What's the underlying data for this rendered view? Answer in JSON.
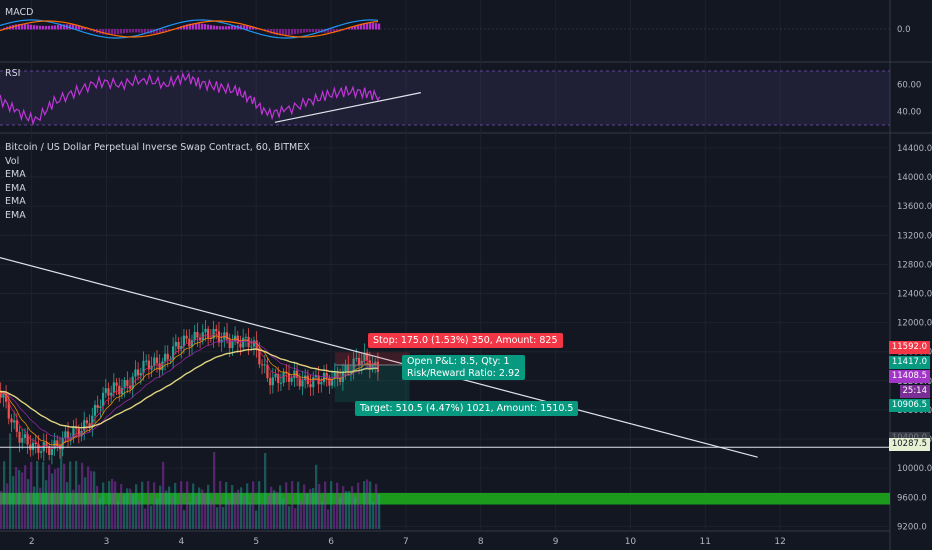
{
  "macd": {
    "label": "MACD",
    "zero_label": "0.0"
  },
  "rsi": {
    "label": "RSI",
    "ticks": [
      "60.00",
      "40.00"
    ]
  },
  "main": {
    "title": "Bitcoin / US Dollar Perpetual Inverse Swap Contract, 60, BITMEX",
    "legend": [
      "Vol",
      "EMA",
      "EMA",
      "EMA",
      "EMA"
    ]
  },
  "position": {
    "stop_label": "Stop: 175.0 (1.53%) 350, Amount: 825",
    "target_label": "Target: 510.5 (4.47%) 1021, Amount: 1510.5",
    "pnl_label": "Open P&L: 8.5, Qty: 1",
    "rr_label": "Risk/Reward Ratio: 2.92"
  },
  "price_labels": {
    "stop": "11592.0",
    "entry": "11417.0",
    "last": "11408.5",
    "countdown": "25:14",
    "target": "10906.5",
    "hline": "10287.5",
    "partial": "10400.0"
  },
  "colors": {
    "up": "#26a69a",
    "down": "#ef5350",
    "rsi_band": "#7e57c2",
    "volume_zone": "#1b9a1b"
  },
  "chart_data": {
    "type": "candlestick",
    "title": "Bitcoin / US Dollar Perpetual Inverse Swap Contract, 60, BITMEX",
    "x_ticks": [
      "2",
      "3",
      "4",
      "5",
      "6",
      "7",
      "8",
      "9",
      "10",
      "11",
      "12"
    ],
    "y_ticks": [
      14400,
      14000,
      13600,
      13200,
      12800,
      12400,
      12000,
      11600,
      11200,
      10800,
      10400,
      10000,
      9600,
      9200
    ],
    "ylim": [
      9150,
      14550
    ],
    "xlim": [
      1.55,
      12.8
    ],
    "last_day": 6.65,
    "close_path": [
      [
        1.55,
        11050
      ],
      [
        1.8,
        10550
      ],
      [
        2.05,
        10200
      ],
      [
        2.3,
        10350
      ],
      [
        2.6,
        10450
      ],
      [
        2.9,
        10900
      ],
      [
        3.2,
        11150
      ],
      [
        3.5,
        11350
      ],
      [
        3.8,
        11550
      ],
      [
        4.05,
        11700
      ],
      [
        4.25,
        11900
      ],
      [
        4.5,
        11750
      ],
      [
        4.75,
        11800
      ],
      [
        4.95,
        11650
      ],
      [
        5.15,
        11300
      ],
      [
        5.4,
        11200
      ],
      [
        5.7,
        11250
      ],
      [
        5.95,
        11150
      ],
      [
        6.2,
        11400
      ],
      [
        6.45,
        11450
      ],
      [
        6.65,
        11408.5
      ]
    ],
    "trendline": [
      [
        1.55,
        12900
      ],
      [
        11.7,
        10150
      ]
    ],
    "horizontal_line": 10287.5,
    "stop_price": 11592.0,
    "entry_price": 11417.0,
    "target_price": 10906.5,
    "position_x": [
      6.05,
      7.05
    ],
    "volume_zone": [
      9500,
      9660
    ],
    "macd_zero": 0.0,
    "rsi_range": [
      30,
      70
    ],
    "rsi_ticks": [
      60,
      40
    ],
    "rsi_trendline": [
      [
        5.25,
        32
      ],
      [
        7.2,
        54
      ]
    ],
    "rsi_path": [
      [
        1.55,
        50
      ],
      [
        1.8,
        40
      ],
      [
        2.05,
        33
      ],
      [
        2.3,
        47
      ],
      [
        2.6,
        55
      ],
      [
        2.9,
        62
      ],
      [
        3.2,
        60
      ],
      [
        3.5,
        64
      ],
      [
        3.8,
        60
      ],
      [
        4.05,
        66
      ],
      [
        4.25,
        61
      ],
      [
        4.5,
        58
      ],
      [
        4.75,
        55
      ],
      [
        4.95,
        48
      ],
      [
        5.15,
        38
      ],
      [
        5.4,
        41
      ],
      [
        5.7,
        47
      ],
      [
        5.95,
        52
      ],
      [
        6.2,
        55
      ],
      [
        6.45,
        54
      ],
      [
        6.65,
        51
      ]
    ]
  }
}
